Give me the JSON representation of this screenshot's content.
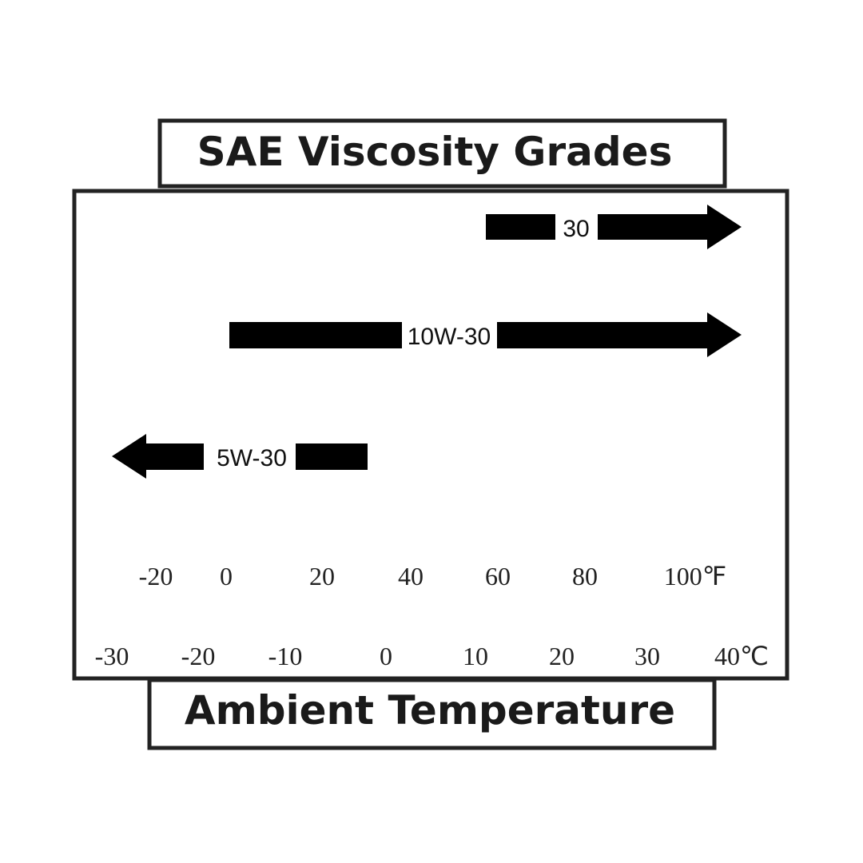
{
  "header": {
    "title": "SAE Viscosity Grades"
  },
  "grades": [
    {
      "label": "30"
    },
    {
      "label": "10W-30"
    },
    {
      "label": "5W-30"
    }
  ],
  "fahrenheit_scale": [
    "-20",
    "0",
    "20",
    "40",
    "60",
    "80",
    "100℉"
  ],
  "celsius_scale": [
    "-30",
    "-20",
    "-10",
    "0",
    "10",
    "20",
    "30",
    "40℃"
  ],
  "footer": {
    "label": "Ambient Temperature"
  }
}
